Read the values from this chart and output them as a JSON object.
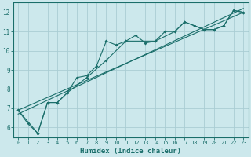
{
  "title": "",
  "xlabel": "Humidex (Indice chaleur)",
  "bg_color": "#cce8ec",
  "grid_color": "#aacdd4",
  "line_color": "#1a6e6a",
  "xlim": [
    -0.5,
    23.5
  ],
  "ylim": [
    5.5,
    12.5
  ],
  "xticks": [
    0,
    1,
    2,
    3,
    4,
    5,
    6,
    7,
    8,
    9,
    10,
    11,
    12,
    13,
    14,
    15,
    16,
    17,
    18,
    19,
    20,
    21,
    22,
    23
  ],
  "yticks": [
    6,
    7,
    8,
    9,
    10,
    11,
    12
  ],
  "line1_x": [
    0,
    1,
    2,
    3,
    4,
    5,
    6,
    7,
    8,
    9,
    10,
    11,
    12,
    13,
    14,
    15,
    16,
    17,
    18,
    19,
    20,
    21,
    22,
    23
  ],
  "line1_y": [
    6.9,
    6.2,
    5.7,
    7.3,
    7.3,
    7.8,
    8.6,
    8.7,
    9.2,
    10.5,
    10.3,
    10.5,
    10.8,
    10.4,
    10.5,
    11.0,
    11.0,
    11.5,
    11.3,
    11.1,
    11.1,
    11.3,
    12.1,
    12.0
  ],
  "line2_x": [
    0,
    2,
    3,
    4,
    5,
    7,
    9,
    11,
    14,
    16,
    17,
    18,
    19,
    20,
    21,
    22,
    23
  ],
  "line2_y": [
    6.9,
    5.7,
    7.3,
    7.3,
    7.8,
    8.6,
    9.5,
    10.5,
    10.5,
    11.0,
    11.5,
    11.3,
    11.1,
    11.1,
    11.3,
    12.1,
    12.0
  ],
  "line3_x": [
    0,
    23
  ],
  "line3_y": [
    6.9,
    12.0
  ],
  "line4_x": [
    0,
    23
  ],
  "line4_y": [
    6.7,
    12.2
  ]
}
